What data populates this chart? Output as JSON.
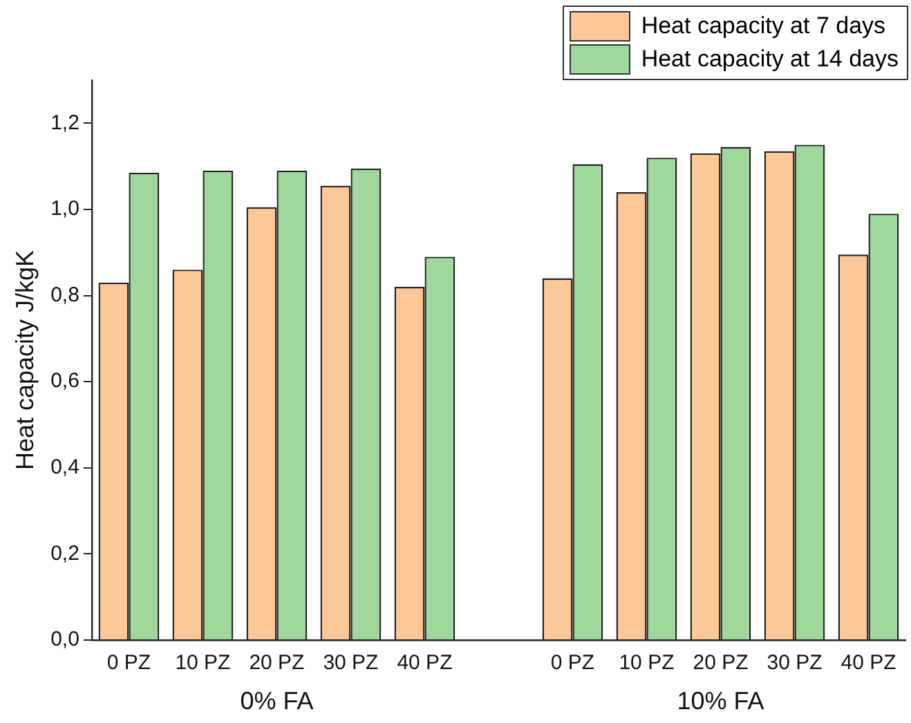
{
  "chart_data": {
    "type": "bar",
    "ylabel": "Heat capacity J/kgK",
    "categories": [
      "0 PZ",
      "10 PZ",
      "20 PZ",
      "30 PZ",
      "40 PZ",
      null,
      "0 PZ",
      "10 PZ",
      "20 PZ",
      "30 PZ",
      "40 PZ"
    ],
    "series": [
      {
        "name": "Heat capacity at 7 days",
        "color": "#fdc897",
        "values": [
          0.83,
          0.86,
          1.005,
          1.055,
          0.82,
          null,
          0.84,
          1.04,
          1.13,
          1.135,
          0.895
        ]
      },
      {
        "name": "Heat capacity at 14 days",
        "color": "#a0d89c",
        "values": [
          1.085,
          1.09,
          1.09,
          1.095,
          0.89,
          null,
          1.105,
          1.12,
          1.145,
          1.15,
          0.99
        ]
      }
    ],
    "ylim": [
      0,
      1.3
    ],
    "yticks": [
      {
        "value": 0,
        "label": "0,0"
      },
      {
        "value": 0.2,
        "label": "0,2"
      },
      {
        "value": 0.4,
        "label": "0,4"
      },
      {
        "value": 0.6,
        "label": "0,6"
      },
      {
        "value": 0.8,
        "label": "0,8"
      },
      {
        "value": 1.0,
        "label": "1,0"
      },
      {
        "value": 1.2,
        "label": "1,2"
      }
    ],
    "annotations": [
      "0% FA",
      "10% FA"
    ],
    "legend": "top right",
    "grid": false
  }
}
